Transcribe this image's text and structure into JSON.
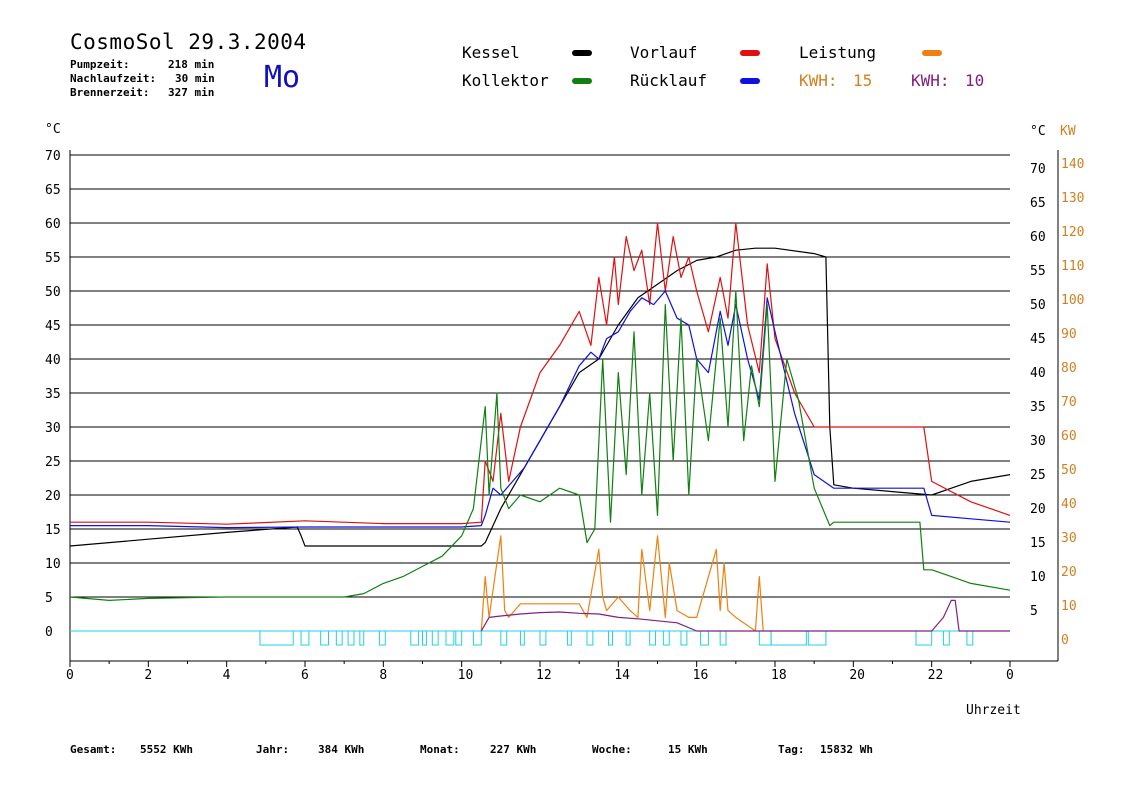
{
  "header": {
    "title": "CosmoSol 29.3.2004",
    "day": "Mo",
    "stats": [
      {
        "label": "Pumpzeit:",
        "value": "218 min"
      },
      {
        "label": "Nachlaufzeit:",
        "value": "30 min"
      },
      {
        "label": "Brennerzeit:",
        "value": "327 min"
      }
    ]
  },
  "legend": {
    "items": [
      {
        "label": "Kessel",
        "color": "#000000"
      },
      {
        "label": "Vorlauf",
        "color": "#e01010"
      },
      {
        "label": "Leistung",
        "color": "#f08010"
      },
      {
        "label": "Kollektor",
        "color": "#108010"
      },
      {
        "label": "Rücklauf",
        "color": "#1010e0"
      }
    ],
    "kwh": [
      {
        "label": "KWH:",
        "value": "15",
        "color": "#d08020"
      },
      {
        "label": "KWH:",
        "value": "10",
        "color": "#802080"
      }
    ]
  },
  "footer": [
    {
      "label": "Gesamt:",
      "value": "5552 KWh"
    },
    {
      "label": "Jahr:",
      "value": "384 KWh"
    },
    {
      "label": "Monat:",
      "value": "227 KWh"
    },
    {
      "label": "Woche:",
      "value": "15 KWh"
    },
    {
      "label": "Tag:",
      "value": "15832 Wh"
    }
  ],
  "chart_data": {
    "type": "line",
    "xlabel": "Uhrzeit",
    "ylabel_left": "°C",
    "ylabel_right_temp": "°C",
    "ylabel_right_power": "KW",
    "xlim": [
      0,
      24
    ],
    "ylim": [
      0,
      70
    ],
    "ylim_right_power": [
      0,
      140
    ],
    "grid": true,
    "x_ticks": [
      "0",
      "2",
      "4",
      "6",
      "8",
      "10",
      "12",
      "14",
      "16",
      "18",
      "20",
      "22",
      "0"
    ],
    "y_ticks_left": [
      "0",
      "5",
      "10",
      "15",
      "20",
      "25",
      "30",
      "35",
      "40",
      "45",
      "50",
      "55",
      "60",
      "65",
      "70"
    ],
    "y_ticks_right_temp": [
      "5",
      "10",
      "15",
      "20",
      "25",
      "30",
      "35",
      "40",
      "45",
      "50",
      "55",
      "60",
      "65",
      "70"
    ],
    "y_ticks_right_power": [
      "0",
      "10",
      "20",
      "30",
      "40",
      "50",
      "60",
      "70",
      "80",
      "90",
      "100",
      "110",
      "120",
      "130",
      "140"
    ],
    "series": [
      {
        "name": "Kessel",
        "color": "#000000",
        "x": [
          0,
          2,
          4,
          5.8,
          5.9,
          6,
          8,
          10,
          10.5,
          10.6,
          11,
          12,
          13,
          13.5,
          14,
          14.5,
          15,
          15.5,
          16,
          16.5,
          17,
          17.5,
          18,
          19,
          19.3,
          19.4,
          19.5,
          20,
          21,
          22,
          22.5,
          23,
          24
        ],
        "y": [
          12.5,
          13.5,
          14.5,
          15.3,
          14,
          12.5,
          12.5,
          12.5,
          12.5,
          13,
          18,
          28,
          38,
          40,
          45,
          49,
          51,
          53,
          54.5,
          55,
          56,
          56.3,
          56.3,
          55.5,
          55,
          30,
          21.5,
          21,
          20.5,
          20,
          21,
          22,
          23
        ]
      },
      {
        "name": "Vorlauf",
        "color": "#e01010",
        "x": [
          0,
          2,
          4,
          6,
          8,
          10,
          10.5,
          10.6,
          10.8,
          11,
          11.2,
          11.5,
          12,
          12.5,
          13,
          13.3,
          13.5,
          13.7,
          13.9,
          14,
          14.2,
          14.4,
          14.6,
          14.8,
          15,
          15.2,
          15.4,
          15.6,
          15.8,
          16,
          16.3,
          16.6,
          16.8,
          17,
          17.3,
          17.6,
          17.8,
          18,
          18.5,
          19,
          19.5,
          20,
          21,
          21.5,
          21.8,
          22,
          23,
          24
        ],
        "y": [
          16,
          16,
          15.7,
          16.2,
          15.8,
          15.8,
          16,
          25,
          22,
          32,
          22,
          30,
          38,
          42,
          47,
          42,
          52,
          45,
          55,
          48,
          58,
          53,
          56,
          48,
          60,
          50,
          58,
          52,
          55,
          50,
          44,
          52,
          46,
          60,
          45,
          38,
          54,
          43,
          35,
          30,
          30,
          30,
          30,
          30,
          30,
          22,
          19,
          17
        ]
      },
      {
        "name": "Rücklauf",
        "color": "#1010e0",
        "x": [
          0,
          2,
          4,
          6,
          8,
          10,
          10.5,
          10.6,
          10.8,
          11,
          11.3,
          11.6,
          12,
          12.5,
          13,
          13.3,
          13.5,
          13.7,
          14,
          14.3,
          14.6,
          14.9,
          15.2,
          15.5,
          15.8,
          16,
          16.3,
          16.6,
          16.8,
          17,
          17.3,
          17.6,
          17.8,
          18,
          18.5,
          19,
          19.5,
          20,
          21,
          21.8,
          22,
          23,
          24
        ],
        "y": [
          15.5,
          15.5,
          15.2,
          15.3,
          15.3,
          15.3,
          15.5,
          17,
          21,
          20,
          22,
          24,
          28,
          33,
          39,
          41,
          40,
          43,
          44,
          47,
          49,
          48,
          50,
          46,
          45,
          40,
          38,
          47,
          42,
          48,
          40,
          34,
          49,
          44,
          32,
          23,
          21,
          21,
          21,
          21,
          17,
          16.5,
          16
        ]
      },
      {
        "name": "Kollektor",
        "color": "#108010",
        "x": [
          0,
          1,
          2,
          3,
          4,
          5,
          6,
          7,
          7.5,
          8,
          8.5,
          9,
          9.5,
          10,
          10.3,
          10.6,
          10.7,
          10.9,
          11,
          11.2,
          11.5,
          12,
          12.5,
          13,
          13.2,
          13.4,
          13.6,
          13.8,
          14,
          14.2,
          14.4,
          14.6,
          14.8,
          15,
          15.2,
          15.4,
          15.6,
          15.8,
          16,
          16.3,
          16.6,
          16.8,
          17,
          17.2,
          17.4,
          17.6,
          17.8,
          18,
          18.3,
          18.6,
          19,
          19.4,
          19.5,
          20,
          21,
          21.7,
          21.8,
          22,
          22.5,
          23,
          24
        ],
        "y": [
          5,
          4.5,
          4.8,
          4.9,
          5,
          5,
          5,
          5,
          5.5,
          7,
          8,
          9.5,
          11,
          14,
          18,
          33,
          20,
          35,
          21,
          18,
          20,
          19,
          21,
          20,
          13,
          15,
          40,
          16,
          38,
          23,
          44,
          20,
          35,
          17,
          48,
          25,
          46,
          20,
          40,
          28,
          46,
          30,
          50,
          28,
          39,
          33,
          48,
          22,
          40,
          34,
          21,
          15.5,
          16,
          16,
          16,
          16,
          9,
          9,
          8,
          7,
          6
        ]
      },
      {
        "name": "Leistung",
        "color": "#f08010",
        "x": [
          10.5,
          10.6,
          10.7,
          11,
          11.1,
          11.2,
          11.5,
          12,
          12.5,
          13,
          13.2,
          13.5,
          13.6,
          13.7,
          14,
          14.3,
          14.5,
          14.6,
          14.8,
          15,
          15.2,
          15.3,
          15.5,
          15.8,
          16,
          16.5,
          16.6,
          16.7,
          16.8,
          17,
          17.5,
          17.6,
          17.7
        ],
        "y": [
          0,
          8,
          2,
          14,
          3,
          2,
          4,
          4,
          4,
          4,
          2,
          12,
          5,
          3,
          5,
          3,
          2,
          12,
          3,
          14,
          2,
          10,
          3,
          2,
          2,
          12,
          3,
          10,
          3,
          2,
          0,
          8,
          0
        ]
      },
      {
        "name": "KWH",
        "color": "#802080",
        "x": [
          10.5,
          10.7,
          11,
          11.5,
          12,
          12.5,
          13,
          13.5,
          14,
          14.5,
          15,
          15.5,
          16,
          16.5,
          17,
          17.5,
          17.6,
          17.8,
          18,
          18.5,
          18.8,
          19,
          19.5,
          20,
          21,
          22,
          22.3,
          22.5,
          22.6,
          22.7,
          23,
          24
        ],
        "y": [
          0,
          2,
          2.2,
          2.5,
          2.7,
          2.8,
          2.6,
          2.5,
          2,
          1.8,
          1.5,
          1.2,
          0,
          0,
          0,
          0,
          0,
          0,
          0,
          0,
          0,
          0,
          0,
          0,
          0,
          0,
          2,
          4.5,
          4.5,
          0,
          0,
          0
        ]
      },
      {
        "name": "Pumpe",
        "color": "#20d0e0",
        "x": [
          0,
          5,
          5,
          5.8,
          5.8,
          24
        ],
        "y": [
          0,
          0,
          -4,
          -4,
          0,
          0
        ]
      }
    ],
    "pump_intervals": [
      [
        4.85,
        5.7
      ],
      [
        5.9,
        6.1
      ],
      [
        6.4,
        6.6
      ],
      [
        6.8,
        6.95
      ],
      [
        7.1,
        7.25
      ],
      [
        7.4,
        7.5
      ],
      [
        7.9,
        8.05
      ],
      [
        8.7,
        8.9
      ],
      [
        9,
        9.1
      ],
      [
        9.25,
        9.4
      ],
      [
        9.6,
        9.8
      ],
      [
        9.85,
        10.0
      ],
      [
        10.3,
        10.5
      ],
      [
        11.0,
        11.15
      ],
      [
        11.5,
        11.6
      ],
      [
        12.0,
        12.15
      ],
      [
        12.7,
        12.8
      ],
      [
        13.2,
        13.35
      ],
      [
        13.75,
        13.85
      ],
      [
        14.2,
        14.3
      ],
      [
        14.8,
        14.95
      ],
      [
        15.15,
        15.3
      ],
      [
        15.6,
        15.75
      ],
      [
        16.1,
        16.3
      ],
      [
        16.6,
        16.75
      ],
      [
        17.6,
        17.9
      ],
      [
        17.9,
        18.8
      ],
      [
        18.85,
        19.3
      ],
      [
        21.6,
        22.0
      ],
      [
        22.3,
        22.45
      ],
      [
        22.9,
        23.05
      ]
    ]
  }
}
